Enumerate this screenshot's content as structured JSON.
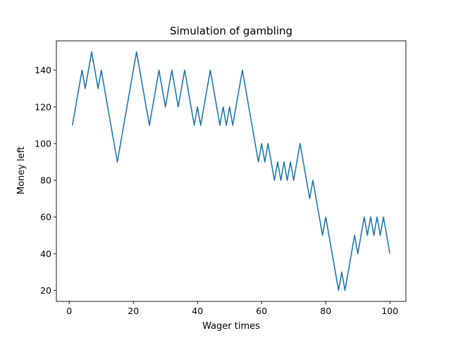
{
  "chart_data": {
    "type": "line",
    "title": "Simulation of gambling",
    "xlabel": "Wager times",
    "ylabel": "Money left",
    "xlim": [
      -4,
      105
    ],
    "ylim": [
      14,
      156
    ],
    "xticks": [
      0,
      20,
      40,
      60,
      80,
      100
    ],
    "yticks": [
      20,
      40,
      60,
      80,
      100,
      120,
      140
    ],
    "grid": false,
    "line_color": "#1f77b4",
    "series": [
      {
        "x": [
          1,
          2,
          3,
          4,
          5,
          6,
          7,
          8,
          9,
          10,
          11,
          12,
          13,
          14,
          15,
          16,
          17,
          18,
          19,
          20,
          21,
          22,
          23,
          24,
          25,
          26,
          27,
          28,
          29,
          30,
          31,
          32,
          33,
          34,
          35,
          36,
          37,
          38,
          39,
          40,
          41,
          42,
          43,
          44,
          45,
          46,
          47,
          48,
          49,
          50,
          51,
          52,
          53,
          54,
          55,
          56,
          57,
          58,
          59,
          60,
          61,
          62,
          63,
          64,
          65,
          66,
          67,
          68,
          69,
          70,
          71,
          72,
          73,
          74,
          75,
          76,
          77,
          78,
          79,
          80,
          81,
          82,
          83,
          84,
          85,
          86,
          87,
          88,
          89,
          90,
          91,
          92,
          93,
          94,
          95,
          96,
          97,
          98,
          99,
          100
        ],
        "y": [
          110,
          120,
          130,
          140,
          130,
          140,
          150,
          140,
          130,
          140,
          130,
          120,
          110,
          100,
          90,
          100,
          110,
          120,
          130,
          140,
          150,
          140,
          130,
          120,
          110,
          120,
          130,
          140,
          130,
          120,
          130,
          140,
          130,
          120,
          130,
          140,
          130,
          120,
          110,
          120,
          110,
          120,
          130,
          140,
          130,
          120,
          110,
          120,
          110,
          120,
          110,
          120,
          130,
          140,
          130,
          120,
          110,
          100,
          90,
          100,
          90,
          100,
          90,
          80,
          90,
          80,
          90,
          80,
          90,
          80,
          90,
          100,
          90,
          80,
          70,
          80,
          70,
          60,
          50,
          60,
          50,
          40,
          30,
          20,
          30,
          20,
          30,
          40,
          50,
          40,
          50,
          60,
          50,
          60,
          50,
          60,
          50,
          60,
          50,
          40
        ]
      }
    ]
  }
}
